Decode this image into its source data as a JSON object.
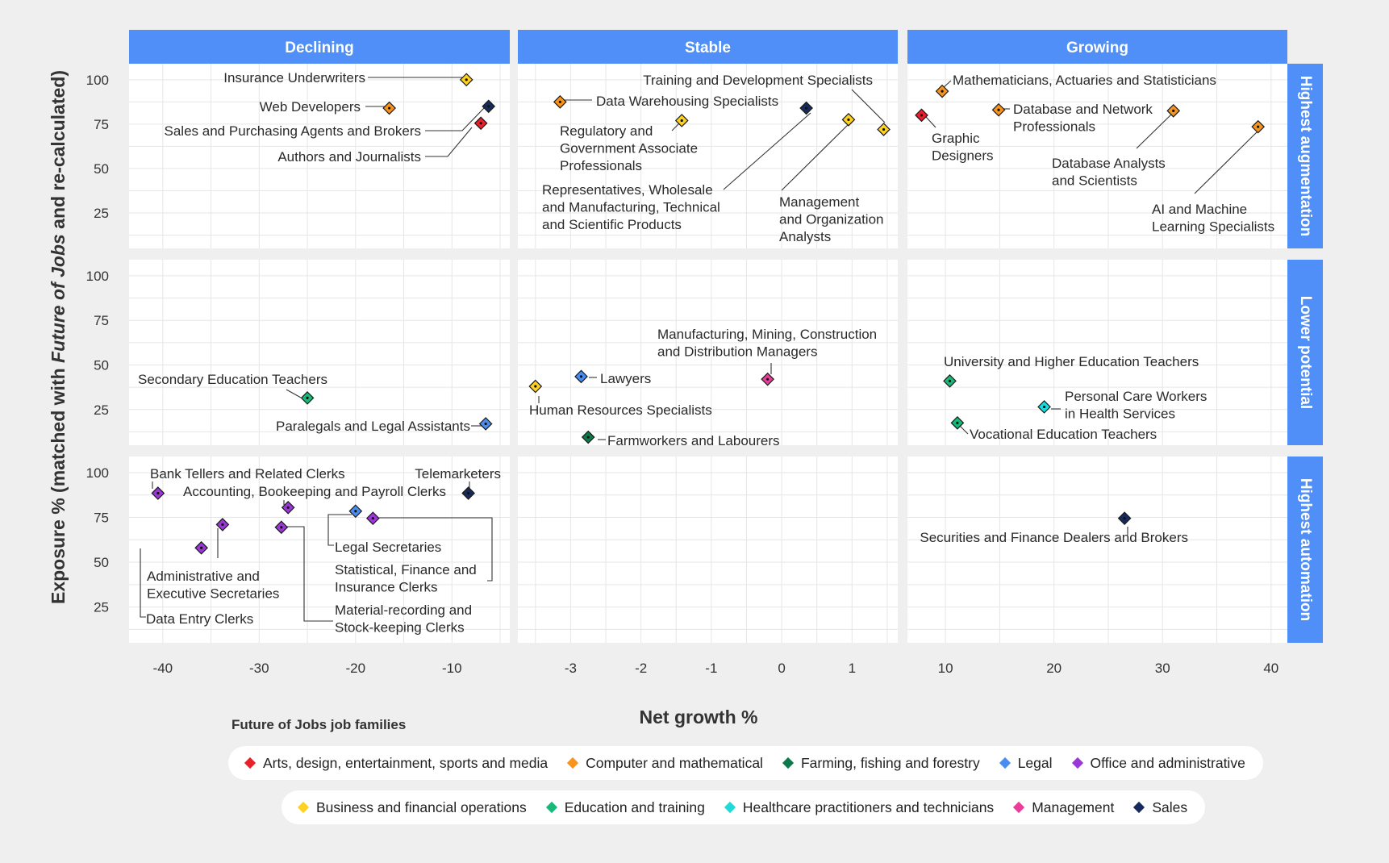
{
  "chart_data": {
    "type": "scatter",
    "title": "",
    "xlabel": "Net growth %",
    "ylabel_parts": [
      "Exposure % (matched with ",
      "Future of Jobs",
      " and re-calculated)"
    ],
    "columns": [
      {
        "name": "Declining",
        "xlim": [
          -43.5,
          -4
        ],
        "ticks": [
          -40,
          -30,
          -20,
          -10
        ],
        "tick_labels": [
          "-40",
          "-30",
          "-20",
          "-10"
        ]
      },
      {
        "name": "Stable",
        "xlim": [
          -3.75,
          1.65
        ],
        "ticks": [
          -3,
          -2,
          -1,
          0,
          1
        ],
        "tick_labels": [
          "-3",
          "-2",
          "-1",
          "0",
          "1"
        ]
      },
      {
        "name": "Growing",
        "xlim": [
          6.5,
          41.5
        ],
        "ticks": [
          10,
          20,
          30,
          40
        ],
        "tick_labels": [
          "10",
          "20",
          "30",
          "40"
        ]
      }
    ],
    "rows": [
      {
        "name": "Highest augmentation"
      },
      {
        "name": "Lower potential"
      },
      {
        "name": "Highest automation"
      }
    ],
    "ylim": [
      5,
      109
    ],
    "y_ticks": [
      25,
      50,
      75,
      100
    ],
    "y_tick_labels": [
      "25",
      "50",
      "75",
      "100"
    ],
    "grid": true,
    "legend_title": "Future of Jobs job families",
    "legend_rows": [
      [
        {
          "name": "Arts, design, entertainment, sports and media",
          "color": "#e8202a"
        },
        {
          "name": "Computer and mathematical",
          "color": "#f7941d"
        },
        {
          "name": "Farming, fishing and forestry",
          "color": "#0b7a4a"
        },
        {
          "name": "Legal",
          "color": "#4a8df0"
        },
        {
          "name": "Office and administrative",
          "color": "#9b37d6"
        }
      ],
      [
        {
          "name": "Business and financial operations",
          "color": "#ffd21f"
        },
        {
          "name": "Education and training",
          "color": "#17b978"
        },
        {
          "name": "Healthcare practitioners and technicians",
          "color": "#20d9d9"
        },
        {
          "name": "Management",
          "color": "#ec3c9b"
        },
        {
          "name": "Sales",
          "color": "#162a5b"
        }
      ]
    ],
    "points": [
      {
        "col": 0,
        "row": 0,
        "x": -8.5,
        "y": 100,
        "family": "Business and financial operations",
        "label": [
          "Insurance Underwriters"
        ]
      },
      {
        "col": 0,
        "row": 0,
        "x": -16.5,
        "y": 84,
        "family": "Computer and mathematical",
        "label": [
          "Web Developers"
        ]
      },
      {
        "col": 0,
        "row": 0,
        "x": -6.2,
        "y": 85,
        "family": "Sales",
        "label": [
          "Sales and Purchasing Agents and Brokers"
        ]
      },
      {
        "col": 0,
        "row": 0,
        "x": -7.0,
        "y": 75.5,
        "family": "Arts, design, entertainment, sports and media",
        "label": [
          "Authors and Journalists"
        ]
      },
      {
        "col": 1,
        "row": 0,
        "x": -3.15,
        "y": 87.5,
        "family": "Computer and mathematical",
        "label": [
          "Data Warehousing Specialists"
        ]
      },
      {
        "col": 1,
        "row": 0,
        "x": 1.45,
        "y": 72,
        "family": "Business and financial operations",
        "label": [
          "Training and Development Specialists"
        ]
      },
      {
        "col": 1,
        "row": 0,
        "x": -1.42,
        "y": 77,
        "family": "Business and financial operations",
        "label": [
          "Regulatory and",
          "Government Associate",
          "Professionals"
        ]
      },
      {
        "col": 1,
        "row": 0,
        "x": 0.35,
        "y": 84,
        "family": "Sales",
        "label": [
          "Representatives, Wholesale",
          "and Manufacturing, Technical",
          "and Scientific Products"
        ]
      },
      {
        "col": 1,
        "row": 0,
        "x": 0.95,
        "y": 77.5,
        "family": "Business and financial operations",
        "label": [
          "Management",
          "and Organization",
          "Analysts"
        ]
      },
      {
        "col": 2,
        "row": 0,
        "x": 9.7,
        "y": 93.5,
        "family": "Computer and mathematical",
        "label": [
          "Mathematicians, Actuaries and Statisticians"
        ]
      },
      {
        "col": 2,
        "row": 0,
        "x": 7.8,
        "y": 80,
        "family": "Arts, design, entertainment, sports and media",
        "label": [
          "Graphic",
          "Designers"
        ]
      },
      {
        "col": 2,
        "row": 0,
        "x": 14.9,
        "y": 83,
        "family": "Computer and mathematical",
        "label": [
          "Database and Network",
          "Professionals"
        ]
      },
      {
        "col": 2,
        "row": 0,
        "x": 31.0,
        "y": 82.5,
        "family": "Computer and mathematical",
        "label": [
          "Database Analysts",
          "and Scientists"
        ]
      },
      {
        "col": 2,
        "row": 0,
        "x": 38.8,
        "y": 73.5,
        "family": "Computer and mathematical",
        "label": [
          "AI and Machine",
          "Learning Specialists"
        ]
      },
      {
        "col": 0,
        "row": 1,
        "x": -25,
        "y": 31.5,
        "family": "Education and training",
        "label": [
          "Secondary Education Teachers"
        ]
      },
      {
        "col": 0,
        "row": 1,
        "x": -6.5,
        "y": 17,
        "family": "Legal",
        "label": [
          "Paralegals and Legal Assistants"
        ]
      },
      {
        "col": 1,
        "row": 1,
        "x": -3.5,
        "y": 38,
        "family": "Business and financial operations",
        "label": [
          "Human Resources Specialists"
        ]
      },
      {
        "col": 1,
        "row": 1,
        "x": -2.85,
        "y": 43.5,
        "family": "Legal",
        "label": [
          "Lawyers"
        ]
      },
      {
        "col": 1,
        "row": 1,
        "x": -0.2,
        "y": 42,
        "family": "Management",
        "label": [
          "Manufacturing, Mining, Construction",
          "and Distribution Managers"
        ]
      },
      {
        "col": 1,
        "row": 1,
        "x": -2.75,
        "y": 9.5,
        "family": "Farming, fishing and forestry",
        "label": [
          "Farmworkers and Labourers"
        ]
      },
      {
        "col": 2,
        "row": 1,
        "x": 10.4,
        "y": 41,
        "family": "Education and training",
        "label": [
          "University and Higher Education Teachers"
        ]
      },
      {
        "col": 2,
        "row": 1,
        "x": 19.1,
        "y": 26.5,
        "family": "Healthcare practitioners and technicians",
        "label": [
          "Personal Care Workers",
          "in Health Services"
        ]
      },
      {
        "col": 2,
        "row": 1,
        "x": 11.1,
        "y": 17.5,
        "family": "Education and training",
        "label": [
          "Vocational Education Teachers"
        ]
      },
      {
        "col": 0,
        "row": 2,
        "x": -40.5,
        "y": 88.5,
        "family": "Office and administrative",
        "label": [
          "Bank Tellers and Related Clerks"
        ]
      },
      {
        "col": 0,
        "row": 2,
        "x": -27,
        "y": 80.5,
        "family": "Office and administrative",
        "label": [
          "Accounting, Bookeeping and Payroll Clerks"
        ]
      },
      {
        "col": 0,
        "row": 2,
        "x": -8.3,
        "y": 88.5,
        "family": "Sales",
        "label": [
          "Telemarketers"
        ]
      },
      {
        "col": 0,
        "row": 2,
        "x": -33.8,
        "y": 71,
        "family": "Office and administrative",
        "label": [
          "Administrative and",
          "Executive Secretaries"
        ]
      },
      {
        "col": 0,
        "row": 2,
        "x": -36,
        "y": 58,
        "family": "Office and administrative",
        "label": [
          "Data Entry Clerks"
        ]
      },
      {
        "col": 0,
        "row": 2,
        "x": -27.7,
        "y": 69.5,
        "family": "Office and administrative",
        "label": [
          "Material-recording and",
          "Stock-keeping Clerks"
        ]
      },
      {
        "col": 0,
        "row": 2,
        "x": -20,
        "y": 78.5,
        "family": "Legal",
        "label": [
          "Legal Secretaries"
        ]
      },
      {
        "col": 0,
        "row": 2,
        "x": -18.2,
        "y": 74.5,
        "family": "Office and administrative",
        "label": [
          "Statistical, Finance and",
          "Insurance Clerks"
        ]
      },
      {
        "col": 2,
        "row": 2,
        "x": 26.5,
        "y": 74.5,
        "family": "Sales",
        "label": [
          "Securities and Finance Dealers and Brokers"
        ]
      }
    ]
  }
}
